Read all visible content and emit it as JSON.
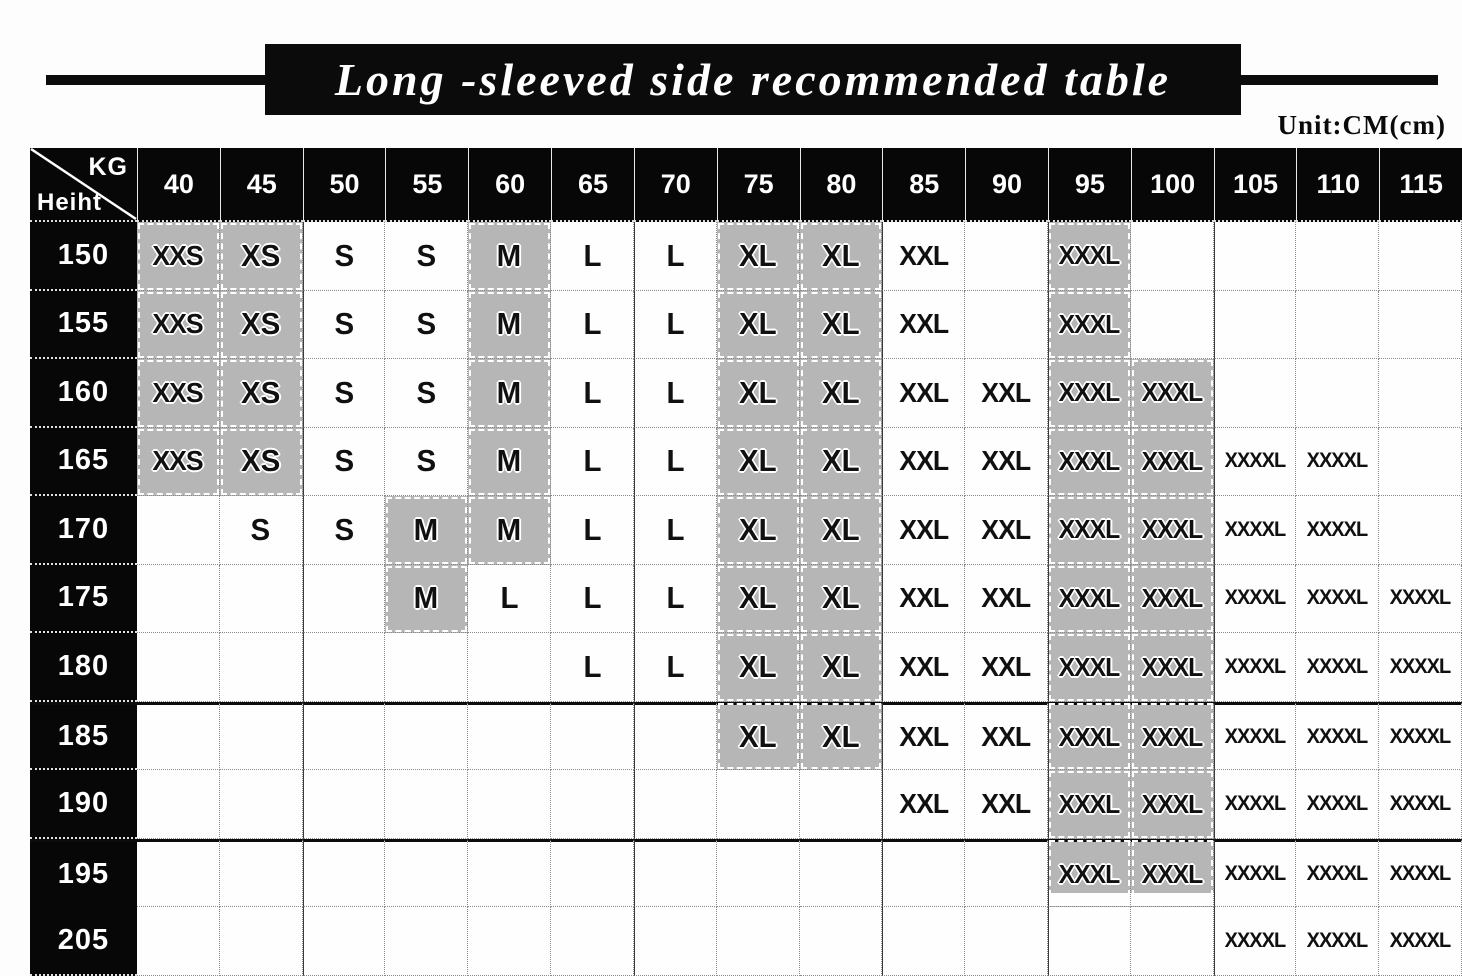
{
  "chart_data": {
    "type": "table",
    "title": "Long -sleeved side recommended table",
    "unit": "Unit:CM(cm)",
    "col_header_label": "KG",
    "row_header_label": "Heiht",
    "weights_kg": [
      "40",
      "45",
      "50",
      "55",
      "60",
      "65",
      "70",
      "75",
      "80",
      "85",
      "90",
      "95",
      "100",
      "105",
      "110",
      "115"
    ],
    "heights_cm": [
      "150",
      "155",
      "160",
      "165",
      "170",
      "175",
      "180",
      "185",
      "190",
      "195",
      "205"
    ],
    "highlight_color": "#b6b6b6",
    "rows": [
      {
        "height": "150",
        "cells": [
          [
            "XXS",
            1
          ],
          [
            "XS",
            1
          ],
          [
            "S",
            0
          ],
          [
            "S",
            0
          ],
          [
            "M",
            1
          ],
          [
            "L",
            0
          ],
          [
            "L",
            0
          ],
          [
            "XL",
            1
          ],
          [
            "XL",
            1
          ],
          [
            "XXL",
            0
          ],
          [
            "",
            0
          ],
          [
            "XXXL",
            1
          ],
          [
            "",
            0
          ],
          [
            "",
            0
          ],
          [
            "",
            0
          ],
          [
            "",
            0
          ]
        ]
      },
      {
        "height": "155",
        "cells": [
          [
            "XXS",
            1
          ],
          [
            "XS",
            1
          ],
          [
            "S",
            0
          ],
          [
            "S",
            0
          ],
          [
            "M",
            1
          ],
          [
            "L",
            0
          ],
          [
            "L",
            0
          ],
          [
            "XL",
            1
          ],
          [
            "XL",
            1
          ],
          [
            "XXL",
            0
          ],
          [
            "",
            0
          ],
          [
            "XXXL",
            1
          ],
          [
            "",
            0
          ],
          [
            "",
            0
          ],
          [
            "",
            0
          ],
          [
            "",
            0
          ]
        ]
      },
      {
        "height": "160",
        "cells": [
          [
            "XXS",
            1
          ],
          [
            "XS",
            1
          ],
          [
            "S",
            0
          ],
          [
            "S",
            0
          ],
          [
            "M",
            1
          ],
          [
            "L",
            0
          ],
          [
            "L",
            0
          ],
          [
            "XL",
            1
          ],
          [
            "XL",
            1
          ],
          [
            "XXL",
            0
          ],
          [
            "XXL",
            0
          ],
          [
            "XXXL",
            1
          ],
          [
            "XXXL",
            1
          ],
          [
            "",
            0
          ],
          [
            "",
            0
          ],
          [
            "",
            0
          ]
        ]
      },
      {
        "height": "165",
        "cells": [
          [
            "XXS",
            1
          ],
          [
            "XS",
            1
          ],
          [
            "S",
            0
          ],
          [
            "S",
            0
          ],
          [
            "M",
            1
          ],
          [
            "L",
            0
          ],
          [
            "L",
            0
          ],
          [
            "XL",
            1
          ],
          [
            "XL",
            1
          ],
          [
            "XXL",
            0
          ],
          [
            "XXL",
            0
          ],
          [
            "XXXL",
            1
          ],
          [
            "XXXL",
            1
          ],
          [
            "XXXXL",
            0
          ],
          [
            "XXXXL",
            0
          ],
          [
            "",
            0
          ]
        ]
      },
      {
        "height": "170",
        "cells": [
          [
            "",
            0
          ],
          [
            "S",
            0
          ],
          [
            "S",
            0
          ],
          [
            "M",
            1
          ],
          [
            "M",
            1
          ],
          [
            "L",
            0
          ],
          [
            "L",
            0
          ],
          [
            "XL",
            1
          ],
          [
            "XL",
            1
          ],
          [
            "XXL",
            0
          ],
          [
            "XXL",
            0
          ],
          [
            "XXXL",
            1
          ],
          [
            "XXXL",
            1
          ],
          [
            "XXXXL",
            0
          ],
          [
            "XXXXL",
            0
          ],
          [
            "",
            0
          ]
        ]
      },
      {
        "height": "175",
        "cells": [
          [
            "",
            0
          ],
          [
            "",
            0
          ],
          [
            "",
            0
          ],
          [
            "M",
            1
          ],
          [
            "L",
            0
          ],
          [
            "L",
            0
          ],
          [
            "L",
            0
          ],
          [
            "XL",
            1
          ],
          [
            "XL",
            1
          ],
          [
            "XXL",
            0
          ],
          [
            "XXL",
            0
          ],
          [
            "XXXL",
            1
          ],
          [
            "XXXL",
            1
          ],
          [
            "XXXXL",
            0
          ],
          [
            "XXXXL",
            0
          ],
          [
            "XXXXL",
            0
          ]
        ]
      },
      {
        "height": "180",
        "cells": [
          [
            "",
            0
          ],
          [
            "",
            0
          ],
          [
            "",
            0
          ],
          [
            "",
            0
          ],
          [
            "",
            0
          ],
          [
            "L",
            0
          ],
          [
            "L",
            0
          ],
          [
            "XL",
            1
          ],
          [
            "XL",
            1
          ],
          [
            "XXL",
            0
          ],
          [
            "XXL",
            0
          ],
          [
            "XXXL",
            1
          ],
          [
            "XXXL",
            1
          ],
          [
            "XXXXL",
            0
          ],
          [
            "XXXXL",
            0
          ],
          [
            "XXXXL",
            0
          ]
        ]
      },
      {
        "height": "185",
        "cells": [
          [
            "",
            0
          ],
          [
            "",
            0
          ],
          [
            "",
            0
          ],
          [
            "",
            0
          ],
          [
            "",
            0
          ],
          [
            "",
            0
          ],
          [
            "",
            0
          ],
          [
            "XL",
            1
          ],
          [
            "XL",
            1
          ],
          [
            "XXL",
            0
          ],
          [
            "XXL",
            0
          ],
          [
            "XXXL",
            1
          ],
          [
            "XXXL",
            1
          ],
          [
            "XXXXL",
            0
          ],
          [
            "XXXXL",
            0
          ],
          [
            "XXXXL",
            0
          ]
        ]
      },
      {
        "height": "190",
        "cells": [
          [
            "",
            0
          ],
          [
            "",
            0
          ],
          [
            "",
            0
          ],
          [
            "",
            0
          ],
          [
            "",
            0
          ],
          [
            "",
            0
          ],
          [
            "",
            0
          ],
          [
            "",
            0
          ],
          [
            "",
            0
          ],
          [
            "XXL",
            0
          ],
          [
            "XXL",
            0
          ],
          [
            "XXXL",
            1
          ],
          [
            "XXXL",
            1
          ],
          [
            "XXXXL",
            0
          ],
          [
            "XXXXL",
            0
          ],
          [
            "XXXXL",
            0
          ]
        ]
      },
      {
        "height": "195",
        "cells": [
          [
            "",
            0
          ],
          [
            "",
            0
          ],
          [
            "",
            0
          ],
          [
            "",
            0
          ],
          [
            "",
            0
          ],
          [
            "",
            0
          ],
          [
            "",
            0
          ],
          [
            "",
            0
          ],
          [
            "",
            0
          ],
          [
            "",
            0
          ],
          [
            "",
            0
          ],
          [
            "XXXL",
            1
          ],
          [
            "XXXL",
            1
          ],
          [
            "XXXXL",
            0
          ],
          [
            "XXXXL",
            0
          ],
          [
            "XXXXL",
            0
          ]
        ]
      },
      {
        "height": "205",
        "cells": [
          [
            "",
            0
          ],
          [
            "",
            0
          ],
          [
            "",
            0
          ],
          [
            "",
            0
          ],
          [
            "",
            0
          ],
          [
            "",
            0
          ],
          [
            "",
            0
          ],
          [
            "",
            0
          ],
          [
            "",
            0
          ],
          [
            "",
            0
          ],
          [
            "",
            0
          ],
          [
            "",
            0
          ],
          [
            "",
            0
          ],
          [
            "XXXXL",
            0
          ],
          [
            "XXXXL",
            0
          ],
          [
            "XXXXL",
            0
          ]
        ]
      }
    ]
  }
}
